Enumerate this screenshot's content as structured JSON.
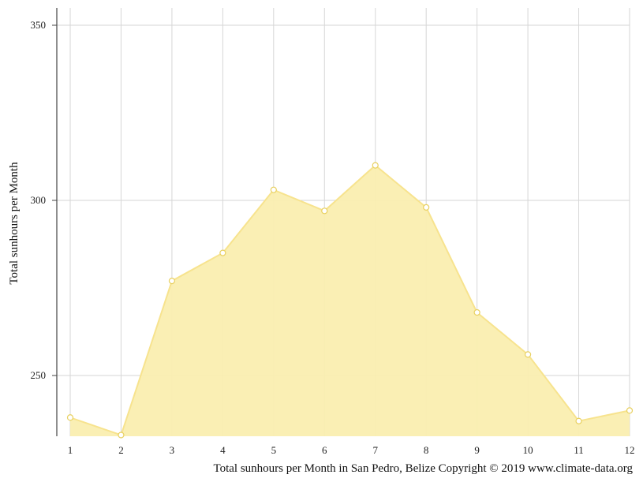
{
  "chart_data": {
    "type": "area",
    "x": [
      1,
      2,
      3,
      4,
      5,
      6,
      7,
      8,
      9,
      10,
      11,
      12
    ],
    "y": [
      238,
      233,
      277,
      285,
      303,
      297,
      310,
      298,
      268,
      256,
      237,
      240
    ],
    "ylabel": "Total sunhours per Month",
    "xlabel": "",
    "caption": "Total sunhours per Month in San Pedro, Belize Copyright © 2019 www.climate-data.org",
    "yticks": [
      250,
      300,
      350
    ],
    "xticks": [
      1,
      2,
      3,
      4,
      5,
      6,
      7,
      8,
      9,
      10,
      11,
      12
    ],
    "ylim": [
      233,
      354
    ],
    "xlim": [
      1,
      12
    ],
    "grid": true,
    "colors": {
      "fill": "#faeeb0",
      "line": "#f7e38e",
      "marker_fill": "#ffffff",
      "marker_stroke": "#e8d060",
      "grid": "#d6d6d6",
      "axis": "#444444"
    }
  }
}
